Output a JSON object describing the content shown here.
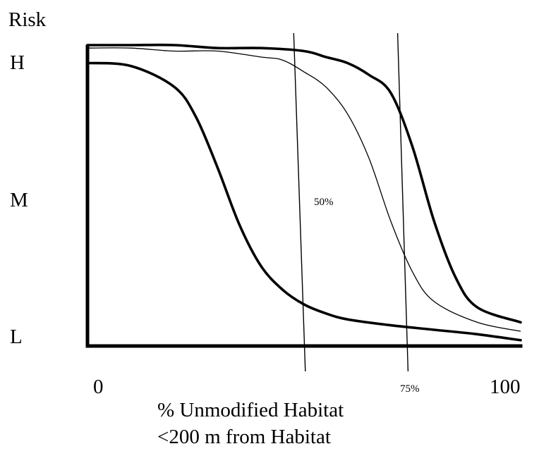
{
  "chart_data": {
    "type": "line",
    "ylabel": "Risk",
    "ytick_labels": [
      "H",
      "M",
      "L"
    ],
    "xtick_labels": [
      "0",
      "100"
    ],
    "xlabel_lines": [
      "% Unmodified Habitat",
      "<200 m from Habitat"
    ],
    "xlim": [
      0,
      100
    ],
    "ylim": [
      0,
      1
    ],
    "annotations": [
      {
        "text": "50%"
      },
      {
        "text": "75%"
      }
    ],
    "reference_lines": [
      {
        "x_bottom": 50.3,
        "x_top": 47.6
      },
      {
        "x_bottom": 74.0,
        "x_top": 71.6
      }
    ],
    "series": [
      {
        "style": "thick-dashed",
        "x": [
          0,
          10,
          20,
          25,
          30,
          35,
          40,
          45,
          50,
          55,
          60,
          70,
          80,
          90,
          100
        ],
        "y": [
          0.94,
          0.93,
          0.86,
          0.76,
          0.59,
          0.4,
          0.26,
          0.18,
          0.13,
          0.1,
          0.08,
          0.06,
          0.045,
          0.03,
          0.01
        ]
      },
      {
        "style": "thin-solid",
        "x": [
          0,
          10,
          20,
          30,
          40,
          45,
          50,
          55,
          60,
          65,
          70,
          75,
          80,
          90,
          100
        ],
        "y": [
          0.99,
          0.99,
          0.98,
          0.98,
          0.96,
          0.95,
          0.91,
          0.86,
          0.77,
          0.62,
          0.41,
          0.24,
          0.14,
          0.07,
          0.04
        ]
      },
      {
        "style": "thick-dashed",
        "x": [
          0,
          10,
          20,
          30,
          40,
          50,
          55,
          60,
          65,
          70,
          75,
          80,
          85,
          90,
          100
        ],
        "y": [
          1.0,
          1.0,
          1.0,
          0.99,
          0.99,
          0.98,
          0.96,
          0.94,
          0.9,
          0.84,
          0.66,
          0.41,
          0.22,
          0.12,
          0.07
        ]
      }
    ]
  }
}
